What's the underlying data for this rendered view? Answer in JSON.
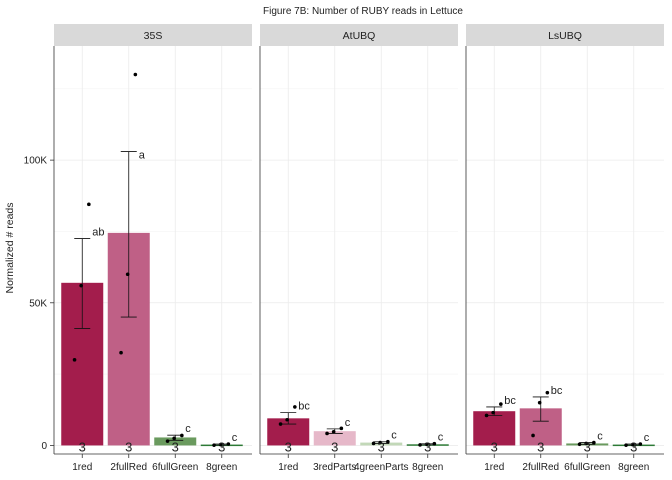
{
  "chart_data": {
    "type": "bar",
    "title": "Figure 7B: Number of RUBY reads in Lettuce",
    "ylabel": "Normalized # reads",
    "xlabel": "",
    "ylim": [
      -3000,
      140000
    ],
    "y_ticks": [
      {
        "value": 0,
        "label": "0"
      },
      {
        "value": 50000,
        "label": "50K"
      },
      {
        "value": 100000,
        "label": "100K"
      }
    ],
    "grid": true,
    "colors": {
      "strip": "#d9d9d9",
      "grid": "#ebebeb",
      "axis": "#333333"
    },
    "panels": [
      {
        "name": "35S",
        "bars": [
          {
            "category": "1red",
            "value": 57000,
            "err_low": 41000,
            "err_high": 72500,
            "color": "#a31d4c",
            "letter": "ab",
            "n": "3",
            "points": [
              30000,
              56000,
              84500
            ]
          },
          {
            "category": "2fullRed",
            "value": 74500,
            "err_low": 45000,
            "err_high": 103000,
            "color": "#bf6086",
            "letter": "a",
            "n": "3",
            "points": [
              32500,
              60000,
              130000
            ]
          },
          {
            "category": "6fullGreen",
            "value": 2800,
            "err_low": 1800,
            "err_high": 3600,
            "color": "#6a9a5e",
            "letter": "c",
            "n": "3",
            "points": [
              1500,
              2500,
              3500
            ]
          },
          {
            "category": "8green",
            "value": 300,
            "err_low": 100,
            "err_high": 500,
            "color": "#2d7a36",
            "letter": "c",
            "n": "3",
            "points": [
              100,
              300,
              500
            ]
          }
        ]
      },
      {
        "name": "AtUBQ",
        "bars": [
          {
            "category": "1red",
            "value": 9500,
            "err_low": 7500,
            "err_high": 11500,
            "color": "#a31d4c",
            "letter": "bc",
            "n": "3",
            "points": [
              7500,
              9000,
              13500
            ]
          },
          {
            "category": "3redParts",
            "value": 5000,
            "err_low": 4200,
            "err_high": 5800,
            "color": "#e6b8c9",
            "letter": "c",
            "n": "3",
            "points": [
              4200,
              4800,
              6000
            ]
          },
          {
            "category": "4greenParts",
            "value": 1000,
            "err_low": 700,
            "err_high": 1300,
            "color": "#c2d8b8",
            "letter": "c",
            "n": "3",
            "points": [
              700,
              1000,
              1300
            ]
          },
          {
            "category": "8green",
            "value": 400,
            "err_low": 200,
            "err_high": 600,
            "color": "#2d7a36",
            "letter": "c",
            "n": "3",
            "points": [
              200,
              400,
              600
            ]
          }
        ]
      },
      {
        "name": "LsUBQ",
        "bars": [
          {
            "category": "1red",
            "value": 12000,
            "err_low": 10500,
            "err_high": 13500,
            "color": "#a31d4c",
            "letter": "bc",
            "n": "3",
            "points": [
              10500,
              11500,
              14500
            ]
          },
          {
            "category": "2fullRed",
            "value": 13000,
            "err_low": 8500,
            "err_high": 17000,
            "color": "#bf6086",
            "letter": "bc",
            "n": "3",
            "points": [
              3500,
              15000,
              18500
            ]
          },
          {
            "category": "6fullGreen",
            "value": 700,
            "err_low": 400,
            "err_high": 1000,
            "color": "#6a9a5e",
            "letter": "c",
            "n": "3",
            "points": [
              400,
              700,
              1000
            ]
          },
          {
            "category": "8green",
            "value": 300,
            "err_low": 100,
            "err_high": 500,
            "color": "#2d7a36",
            "letter": "c",
            "n": "3",
            "points": [
              100,
              300,
              500
            ]
          }
        ]
      }
    ]
  }
}
